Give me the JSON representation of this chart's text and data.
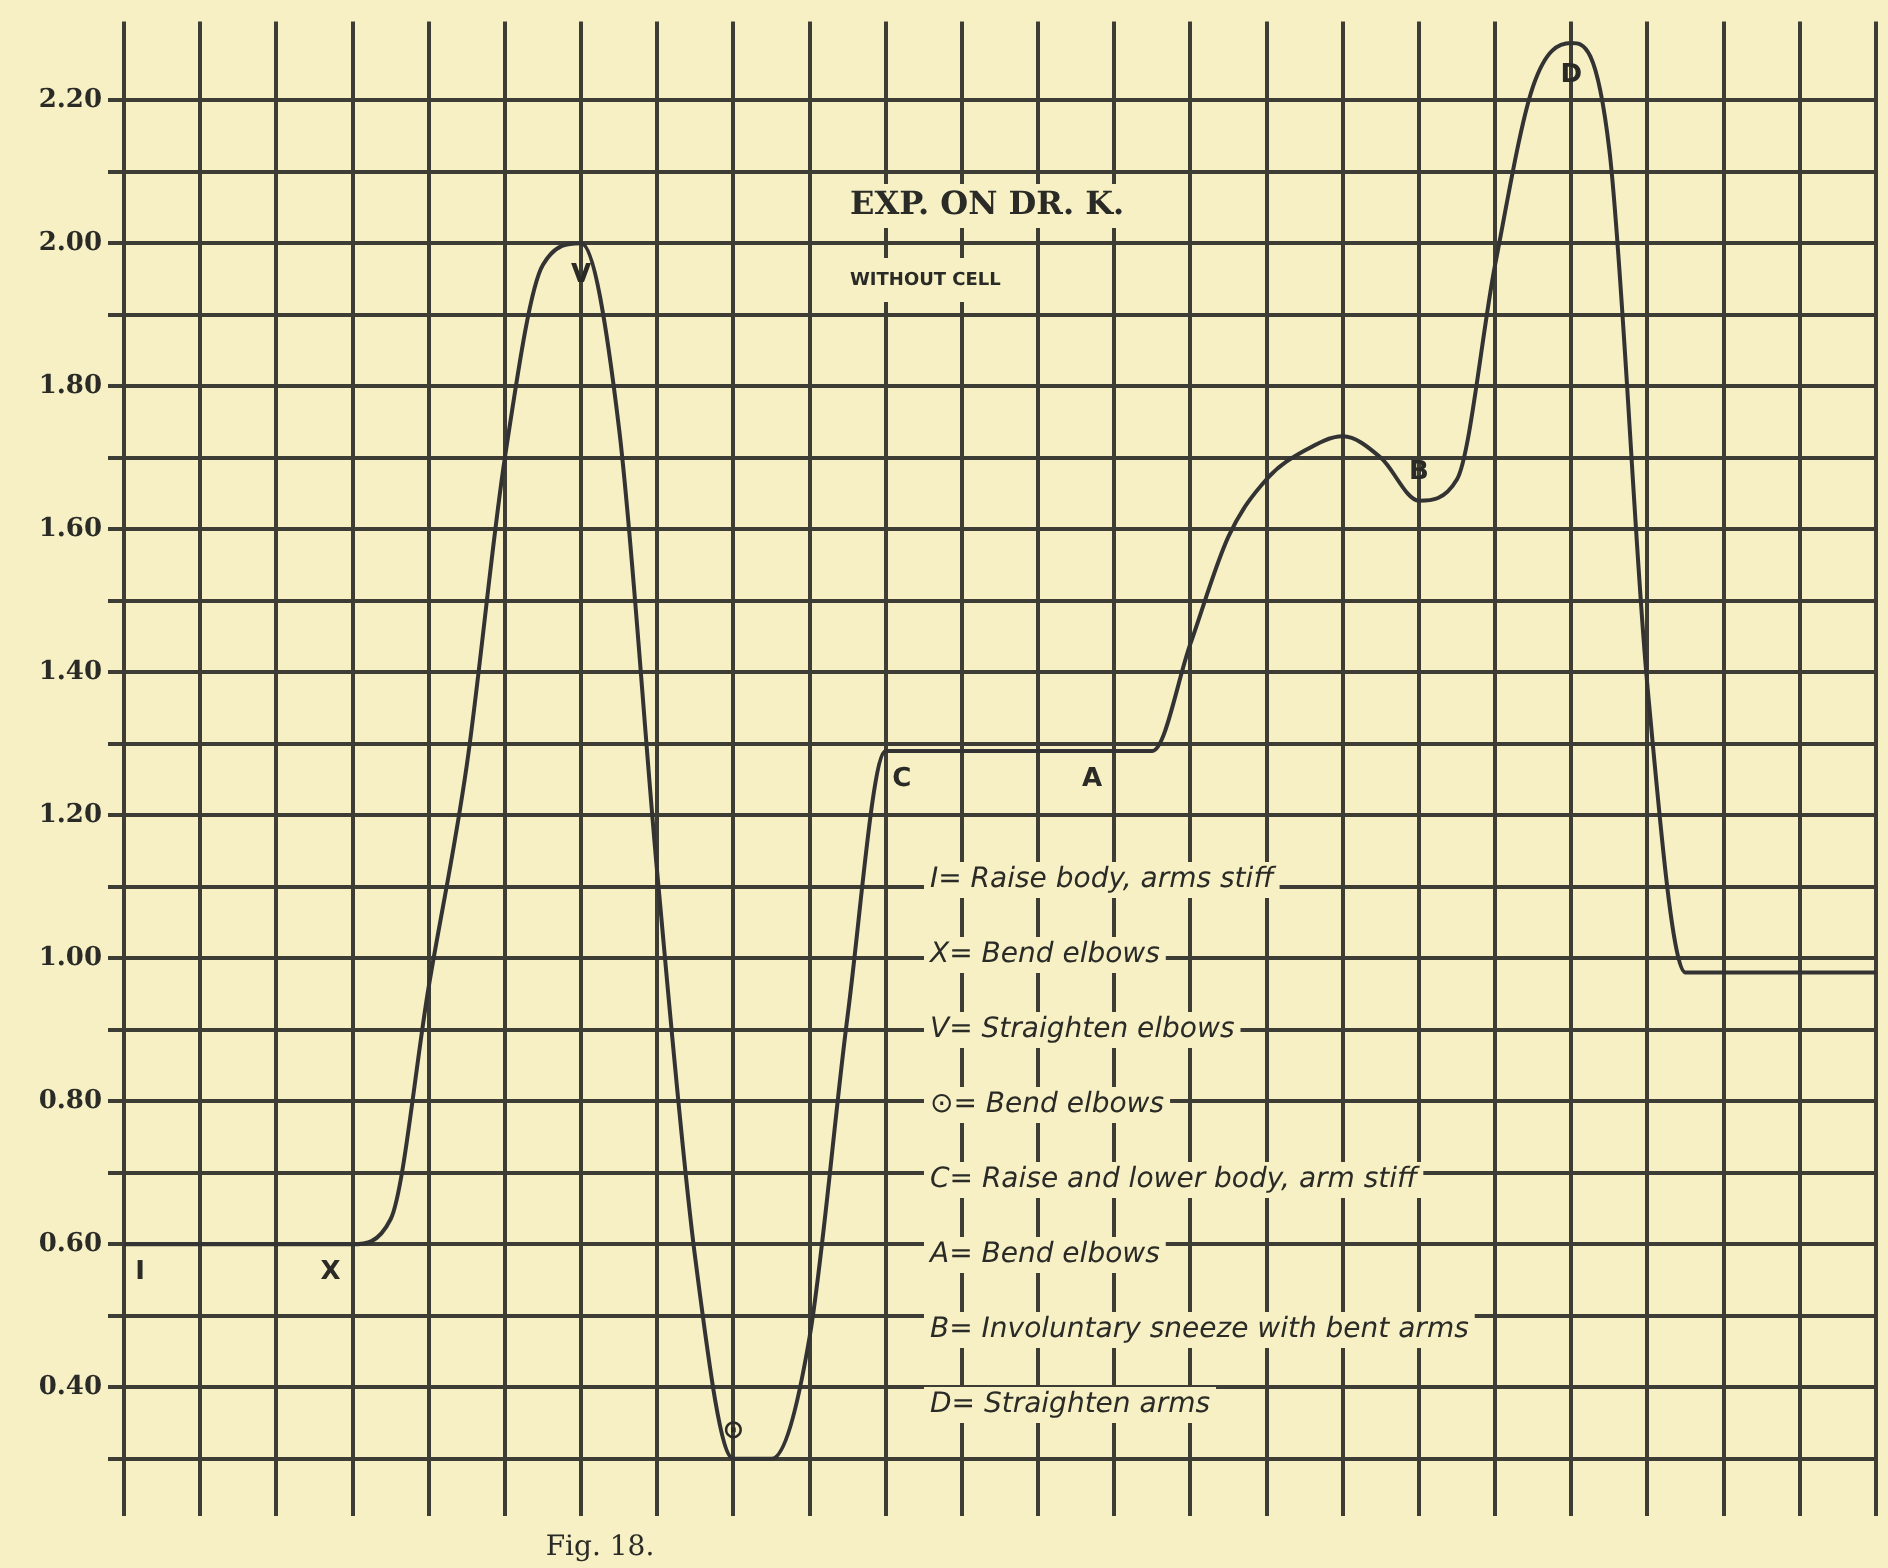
{
  "chart_data": {
    "type": "line",
    "title": "EXP. ON DR. K.",
    "subtitle": "WITHOUT CELL",
    "categories": [
      null,
      null,
      null,
      null,
      null,
      null,
      null,
      null,
      null,
      null,
      null,
      null,
      null,
      null,
      null,
      null,
      null,
      null,
      null,
      null,
      null,
      null,
      null,
      null,
      null,
      null,
      null,
      null,
      null,
      null,
      null,
      null,
      null,
      null,
      null,
      null,
      null,
      null,
      null,
      null,
      null,
      null,
      null,
      null,
      null,
      null,
      null
    ],
    "series": [
      {
        "color": "#333333",
        "values": [
          0.6,
          0.6,
          0.6,
          0.6,
          0.6,
          0.6,
          0.6,
          0.635,
          0.96,
          1.27,
          1.7,
          1.97,
          2.0,
          1.74,
          1.12,
          0.58,
          0.3,
          0.3,
          0.47,
          0.92,
          1.29,
          1.29,
          1.29,
          1.29,
          1.29,
          1.29,
          1.29,
          1.29,
          1.44,
          1.59,
          1.67,
          1.71,
          1.73,
          1.7,
          1.64,
          1.67,
          1.97,
          2.22,
          2.28,
          2.13,
          1.38,
          0.98,
          0.98,
          0.98,
          0.98,
          0.98,
          0.98
        ],
        "value_labels": [
          "I",
          null,
          null,
          null,
          null,
          "X",
          null,
          null,
          null,
          null,
          null,
          null,
          "V",
          null,
          null,
          null,
          "⊙",
          null,
          null,
          null,
          "C",
          null,
          null,
          null,
          null,
          "A",
          null,
          null,
          null,
          null,
          null,
          null,
          null,
          null,
          "B",
          null,
          null,
          null,
          "D",
          null,
          null,
          null,
          null,
          null,
          null,
          null,
          null
        ]
      }
    ],
    "ylim": [
      0.22,
      2.31
    ],
    "yticks": [
      {
        "value": 0.3,
        "label": null
      },
      {
        "value": 0.4,
        "label": "0.40"
      },
      {
        "value": 0.5,
        "label": null
      },
      {
        "value": 0.6,
        "label": "0.60"
      },
      {
        "value": 0.7,
        "label": null
      },
      {
        "value": 0.8,
        "label": "0.80"
      },
      {
        "value": 0.9,
        "label": null
      },
      {
        "value": 1.0,
        "label": "1.00"
      },
      {
        "value": 1.1,
        "label": null
      },
      {
        "value": 1.2,
        "label": "1.20"
      },
      {
        "value": 1.3,
        "label": null
      },
      {
        "value": 1.4,
        "label": "1.40"
      },
      {
        "value": 1.5,
        "label": null
      },
      {
        "value": 1.6,
        "label": "1.60"
      },
      {
        "value": 1.7,
        "label": null
      },
      {
        "value": 1.8,
        "label": "1.80"
      },
      {
        "value": 1.9,
        "label": null
      },
      {
        "value": 2.0,
        "label": "2.00"
      },
      {
        "value": 2.1,
        "label": null
      },
      {
        "value": 2.2,
        "label": "2.20"
      }
    ],
    "grid": true,
    "marker": "none",
    "line_style": "solid",
    "legend": false,
    "annotations": [
      "I= Raise body, arms stiff",
      "X= Bend elbows",
      "V= Straighten elbows",
      "⊙= Bend elbows",
      "C= Raise and lower body, arm stiff",
      "A= Bend elbows",
      "B= Involuntary sneeze with bent arms",
      "D= Straighten arms",
      "Fig. 18."
    ]
  }
}
